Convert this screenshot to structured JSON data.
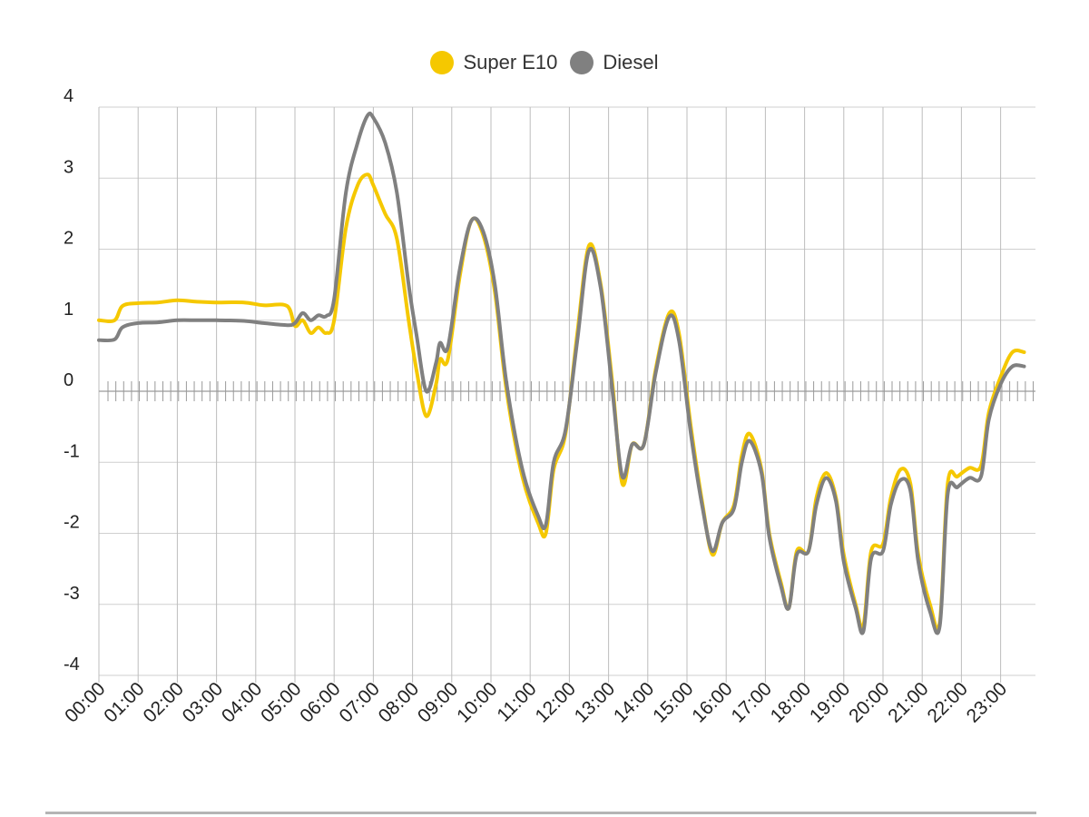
{
  "chart_data": {
    "type": "line",
    "title": "",
    "xlabel": "",
    "ylabel": "",
    "ylim": [
      -4,
      4
    ],
    "yticks": [
      4,
      3,
      2,
      1,
      0,
      -1,
      -2,
      -3,
      -4
    ],
    "xticks": [
      "00:00",
      "01:00",
      "02:00",
      "03:00",
      "04:00",
      "05:00",
      "06:00",
      "07:00",
      "08:00",
      "09:00",
      "10:00",
      "11:00",
      "12:00",
      "13:00",
      "14:00",
      "15:00",
      "16:00",
      "17:00",
      "18:00",
      "19:00",
      "20:00",
      "21:00",
      "22:00",
      "23:00"
    ],
    "xlim": [
      0,
      23.7
    ],
    "grid": true,
    "legend_position": "top-center",
    "series": [
      {
        "name": "Super E10",
        "color": "#f5c800",
        "points": [
          [
            0,
            1.0
          ],
          [
            0.4,
            1.0
          ],
          [
            0.6,
            1.2
          ],
          [
            1,
            1.24
          ],
          [
            1.5,
            1.25
          ],
          [
            2,
            1.28
          ],
          [
            2.5,
            1.26
          ],
          [
            3,
            1.25
          ],
          [
            3.7,
            1.25
          ],
          [
            4.2,
            1.21
          ],
          [
            4.8,
            1.2
          ],
          [
            5,
            0.92
          ],
          [
            5.2,
            1.0
          ],
          [
            5.4,
            0.82
          ],
          [
            5.6,
            0.9
          ],
          [
            5.8,
            0.82
          ],
          [
            6,
            1.0
          ],
          [
            6.3,
            2.3
          ],
          [
            6.6,
            2.9
          ],
          [
            6.85,
            3.05
          ],
          [
            7,
            2.9
          ],
          [
            7.3,
            2.5
          ],
          [
            7.6,
            2.15
          ],
          [
            7.9,
            1.0
          ],
          [
            8.1,
            0.3
          ],
          [
            8.35,
            -0.35
          ],
          [
            8.6,
            0.1
          ],
          [
            8.7,
            0.45
          ],
          [
            8.9,
            0.45
          ],
          [
            9.2,
            1.6
          ],
          [
            9.5,
            2.4
          ],
          [
            9.8,
            2.2
          ],
          [
            10.1,
            1.4
          ],
          [
            10.4,
            0.0
          ],
          [
            10.8,
            -1.2
          ],
          [
            11.2,
            -1.85
          ],
          [
            11.4,
            -2.0
          ],
          [
            11.6,
            -1.1
          ],
          [
            11.9,
            -0.6
          ],
          [
            12.2,
            0.8
          ],
          [
            12.5,
            2.05
          ],
          [
            12.8,
            1.5
          ],
          [
            13.1,
            0.1
          ],
          [
            13.35,
            -1.3
          ],
          [
            13.6,
            -0.75
          ],
          [
            13.9,
            -0.75
          ],
          [
            14.2,
            0.3
          ],
          [
            14.55,
            1.1
          ],
          [
            14.8,
            0.8
          ],
          [
            15.1,
            -0.5
          ],
          [
            15.4,
            -1.6
          ],
          [
            15.65,
            -2.3
          ],
          [
            15.9,
            -1.85
          ],
          [
            16.2,
            -1.6
          ],
          [
            16.4,
            -0.9
          ],
          [
            16.6,
            -0.6
          ],
          [
            16.9,
            -1.1
          ],
          [
            17.1,
            -2.0
          ],
          [
            17.4,
            -2.7
          ],
          [
            17.6,
            -3.05
          ],
          [
            17.8,
            -2.25
          ],
          [
            18.1,
            -2.25
          ],
          [
            18.3,
            -1.5
          ],
          [
            18.55,
            -1.15
          ],
          [
            18.8,
            -1.5
          ],
          [
            19.0,
            -2.3
          ],
          [
            19.3,
            -3.0
          ],
          [
            19.5,
            -3.3
          ],
          [
            19.7,
            -2.25
          ],
          [
            20.0,
            -2.15
          ],
          [
            20.2,
            -1.5
          ],
          [
            20.45,
            -1.1
          ],
          [
            20.7,
            -1.3
          ],
          [
            20.9,
            -2.3
          ],
          [
            21.2,
            -3.0
          ],
          [
            21.45,
            -3.25
          ],
          [
            21.65,
            -1.3
          ],
          [
            21.9,
            -1.2
          ],
          [
            22.2,
            -1.08
          ],
          [
            22.5,
            -1.05
          ],
          [
            22.7,
            -0.3
          ],
          [
            23.0,
            0.2
          ],
          [
            23.3,
            0.55
          ],
          [
            23.6,
            0.55
          ]
        ]
      },
      {
        "name": "Diesel",
        "color": "#808080",
        "points": [
          [
            0,
            0.72
          ],
          [
            0.4,
            0.73
          ],
          [
            0.6,
            0.9
          ],
          [
            1,
            0.96
          ],
          [
            1.5,
            0.97
          ],
          [
            2,
            1.0
          ],
          [
            2.5,
            1.0
          ],
          [
            3,
            1.0
          ],
          [
            3.7,
            0.99
          ],
          [
            4.2,
            0.96
          ],
          [
            4.8,
            0.93
          ],
          [
            5,
            0.96
          ],
          [
            5.2,
            1.1
          ],
          [
            5.4,
            1.0
          ],
          [
            5.6,
            1.07
          ],
          [
            5.8,
            1.06
          ],
          [
            6,
            1.3
          ],
          [
            6.3,
            2.8
          ],
          [
            6.6,
            3.5
          ],
          [
            6.85,
            3.88
          ],
          [
            7,
            3.85
          ],
          [
            7.3,
            3.5
          ],
          [
            7.6,
            2.8
          ],
          [
            7.9,
            1.5
          ],
          [
            8.1,
            0.8
          ],
          [
            8.35,
            0.0
          ],
          [
            8.6,
            0.4
          ],
          [
            8.7,
            0.68
          ],
          [
            8.9,
            0.62
          ],
          [
            9.2,
            1.7
          ],
          [
            9.5,
            2.4
          ],
          [
            9.8,
            2.25
          ],
          [
            10.1,
            1.5
          ],
          [
            10.4,
            0.1
          ],
          [
            10.8,
            -1.1
          ],
          [
            11.2,
            -1.75
          ],
          [
            11.4,
            -1.88
          ],
          [
            11.6,
            -1.0
          ],
          [
            11.9,
            -0.55
          ],
          [
            12.2,
            0.7
          ],
          [
            12.5,
            1.98
          ],
          [
            12.8,
            1.45
          ],
          [
            13.1,
            0.0
          ],
          [
            13.35,
            -1.2
          ],
          [
            13.6,
            -0.75
          ],
          [
            13.9,
            -0.75
          ],
          [
            14.2,
            0.25
          ],
          [
            14.55,
            1.05
          ],
          [
            14.8,
            0.7
          ],
          [
            15.1,
            -0.6
          ],
          [
            15.4,
            -1.65
          ],
          [
            15.65,
            -2.25
          ],
          [
            15.9,
            -1.85
          ],
          [
            16.2,
            -1.65
          ],
          [
            16.4,
            -1.0
          ],
          [
            16.6,
            -0.7
          ],
          [
            16.9,
            -1.15
          ],
          [
            17.1,
            -2.05
          ],
          [
            17.4,
            -2.75
          ],
          [
            17.6,
            -3.05
          ],
          [
            17.8,
            -2.3
          ],
          [
            18.1,
            -2.25
          ],
          [
            18.3,
            -1.6
          ],
          [
            18.55,
            -1.22
          ],
          [
            18.8,
            -1.55
          ],
          [
            19.0,
            -2.4
          ],
          [
            19.3,
            -3.05
          ],
          [
            19.5,
            -3.38
          ],
          [
            19.7,
            -2.35
          ],
          [
            20.0,
            -2.25
          ],
          [
            20.2,
            -1.6
          ],
          [
            20.45,
            -1.25
          ],
          [
            20.7,
            -1.4
          ],
          [
            20.9,
            -2.4
          ],
          [
            21.2,
            -3.1
          ],
          [
            21.45,
            -3.3
          ],
          [
            21.65,
            -1.45
          ],
          [
            21.9,
            -1.35
          ],
          [
            22.2,
            -1.22
          ],
          [
            22.5,
            -1.2
          ],
          [
            22.7,
            -0.4
          ],
          [
            23.0,
            0.1
          ],
          [
            23.3,
            0.35
          ],
          [
            23.6,
            0.35
          ]
        ]
      }
    ]
  }
}
